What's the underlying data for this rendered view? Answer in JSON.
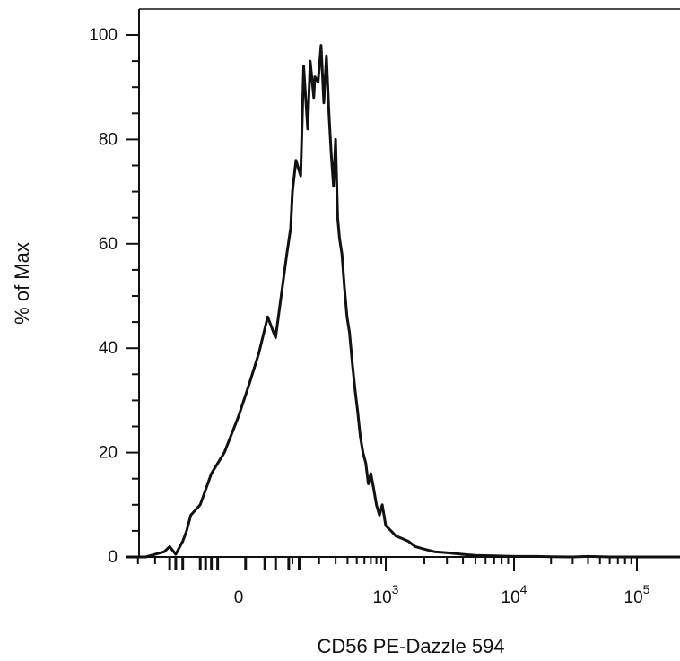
{
  "chart_data": {
    "type": "line",
    "title": "",
    "xlabel": "CD56 PE-Dazzle 594",
    "ylabel": "% of Max",
    "x_scale": "logicle",
    "y_ticks": [
      {
        "value": 0,
        "label": "0"
      },
      {
        "value": 20,
        "label": "20"
      },
      {
        "value": 40,
        "label": "40"
      },
      {
        "value": 60,
        "label": "60"
      },
      {
        "value": 80,
        "label": "80"
      },
      {
        "value": 100,
        "label": "100"
      }
    ],
    "x_ticks": [
      {
        "value": 0,
        "base": "0",
        "exp": ""
      },
      {
        "value": 1000,
        "base": "10",
        "exp": "3"
      },
      {
        "value": 10000,
        "base": "10",
        "exp": "4"
      },
      {
        "value": 100000,
        "base": "10",
        "exp": "5"
      }
    ],
    "ylim": [
      0,
      105
    ],
    "xlim": [
      -400,
      180000
    ],
    "grid": false,
    "series": [
      {
        "color": "#111111",
        "x": [
          -300,
          -250,
          -200,
          -160,
          -140,
          -120,
          -100,
          -90,
          -80,
          -60,
          -40,
          -20,
          0,
          15,
          30,
          45,
          60,
          75,
          85,
          95,
          100,
          110,
          125,
          135,
          150,
          160,
          175,
          180,
          195,
          210,
          225,
          240,
          255,
          270,
          285,
          300,
          315,
          330,
          350,
          370,
          395,
          420,
          450,
          480,
          510,
          545,
          580,
          620,
          660,
          700,
          750,
          800,
          860,
          920,
          1000,
          1100,
          1200,
          1350,
          1500,
          1700,
          2000,
          2400,
          3000,
          4000,
          5000,
          7000,
          10000,
          15000,
          20000,
          30000,
          40000,
          60000,
          100000,
          180000
        ],
        "values": [
          0,
          0,
          0.5,
          1,
          2,
          0.5,
          3,
          5,
          8,
          10,
          16,
          20,
          27,
          33,
          39,
          46,
          42,
          52,
          58,
          63,
          70,
          76,
          73,
          94,
          82,
          95,
          88,
          92,
          91,
          98,
          87,
          96,
          85,
          77,
          71,
          80,
          65,
          61,
          58,
          52,
          46,
          43,
          37,
          32,
          28,
          23,
          20,
          18,
          14,
          16,
          13,
          10,
          8,
          10,
          6,
          5,
          4,
          3.5,
          3,
          2,
          1.5,
          1,
          0.8,
          0.5,
          0.3,
          0.2,
          0.1,
          0.1,
          0.05,
          0,
          0.1,
          0,
          0,
          0
        ]
      }
    ]
  }
}
